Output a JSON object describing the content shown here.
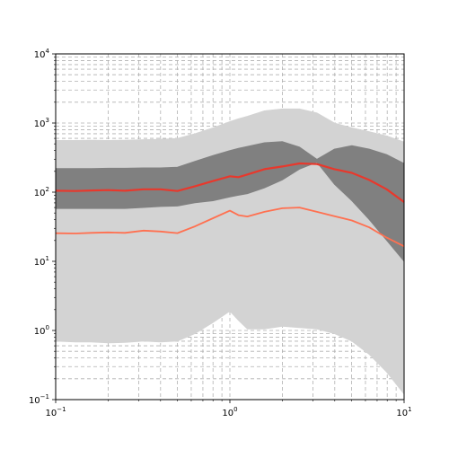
{
  "chart_data": {
    "type": "line",
    "title": "",
    "xlabel": "",
    "ylabel": "",
    "xscale": "log",
    "yscale": "log",
    "xlim": [
      0.1,
      10
    ],
    "ylim": [
      0.1,
      10000
    ],
    "grid": true,
    "legend": "none",
    "x_ticks": [
      {
        "value": 0.1,
        "base": "10",
        "exp": "−1"
      },
      {
        "value": 1,
        "base": "10",
        "exp": "0"
      },
      {
        "value": 10,
        "base": "10",
        "exp": "1"
      }
    ],
    "y_ticks": [
      {
        "value": 0.1,
        "base": "10",
        "exp": "−1"
      },
      {
        "value": 1,
        "base": "10",
        "exp": "0"
      },
      {
        "value": 10,
        "base": "10",
        "exp": "1"
      },
      {
        "value": 100,
        "base": "10",
        "exp": "2"
      },
      {
        "value": 1000,
        "base": "10",
        "exp": "3"
      },
      {
        "value": 10000,
        "base": "10",
        "exp": "4"
      }
    ],
    "x": [
      0.1,
      0.13,
      0.16,
      0.2,
      0.25,
      0.32,
      0.4,
      0.5,
      0.63,
      0.8,
      1.0,
      1.12,
      1.26,
      1.58,
      2.0,
      2.51,
      3.16,
      3.98,
      5.01,
      6.31,
      7.94,
      10
    ],
    "bands": [
      {
        "name": "",
        "color": "#d3d3d3",
        "upper": [
          560,
          560,
          565,
          560,
          565,
          575,
          580,
          600,
          700,
          850,
          1050,
          1150,
          1250,
          1500,
          1600,
          1600,
          1400,
          1000,
          850,
          750,
          650,
          530
        ],
        "lower": [
          0.7,
          0.68,
          0.68,
          0.66,
          0.67,
          0.7,
          0.68,
          0.7,
          0.9,
          1.3,
          1.9,
          1.4,
          1.05,
          1.05,
          1.15,
          1.1,
          1.05,
          0.9,
          0.7,
          0.45,
          0.25,
          0.12
        ]
      },
      {
        "name": "",
        "color": "#808080",
        "upper": [
          220,
          220,
          220,
          222,
          222,
          225,
          225,
          230,
          280,
          340,
          400,
          430,
          460,
          520,
          540,
          450,
          300,
          420,
          470,
          420,
          350,
          260
        ],
        "lower": [
          58,
          58,
          58,
          58,
          58,
          60,
          62,
          63,
          70,
          75,
          85,
          90,
          95,
          115,
          150,
          215,
          270,
          130,
          75,
          40,
          20,
          10
        ]
      }
    ],
    "series": [
      {
        "name": "",
        "color": "#e8382c",
        "width": 2.2,
        "values": [
          105,
          104,
          106,
          107,
          105,
          110,
          110,
          104,
          122,
          145,
          170,
          165,
          180,
          215,
          235,
          260,
          255,
          215,
          190,
          150,
          110,
          72
        ]
      },
      {
        "name": "",
        "color": "#ff7050",
        "width": 1.8,
        "values": [
          25.5,
          25.3,
          25.8,
          26.2,
          25.8,
          27.8,
          27.0,
          25.6,
          32.0,
          42.0,
          54.0,
          46.5,
          44.5,
          52.0,
          58.5,
          60.0,
          52.0,
          45.0,
          39.0,
          31.0,
          22.0,
          16.5
        ]
      }
    ]
  }
}
